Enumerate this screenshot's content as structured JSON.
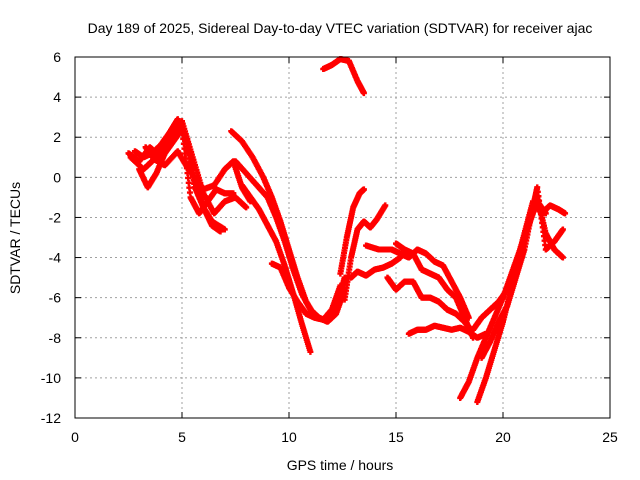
{
  "chart_data": {
    "type": "scatter",
    "title": "Day 189 of 2025, Sidereal Day-to-day VTEC variation (SDTVAR) for receiver ajac",
    "xlabel": "GPS time / hours",
    "ylabel": "SDTVAR / TECUs",
    "xlim": [
      0,
      25
    ],
    "ylim": [
      -12,
      6
    ],
    "x_ticks": [
      0,
      5,
      10,
      15,
      20,
      25
    ],
    "y_ticks": [
      6,
      4,
      2,
      0,
      -2,
      -4,
      -6,
      -8,
      -10,
      -12
    ],
    "grid": true,
    "legend": "none",
    "marker_color": "#ff0000",
    "series": [
      {
        "x": [
          2.5,
          3.0,
          3.5,
          4.0,
          4.5,
          5.0,
          5.5,
          6.0,
          6.5,
          7.0,
          7.5,
          8.0
        ],
        "y": [
          1.2,
          0.8,
          1.5,
          1.0,
          2.0,
          2.8,
          1.0,
          -0.8,
          -1.8,
          -1.2,
          -1.0,
          -1.5
        ]
      },
      {
        "x": [
          2.6,
          3.2,
          3.6,
          4.2,
          4.8,
          5.2,
          5.6,
          6.0,
          6.4,
          7.0
        ],
        "y": [
          1.0,
          0.4,
          0.8,
          1.5,
          2.6,
          2.0,
          -0.5,
          -1.5,
          -2.2,
          -2.6
        ]
      },
      {
        "x": [
          2.8,
          3.2,
          3.6,
          4.0,
          4.4,
          4.8,
          5.2,
          5.6,
          6.0,
          6.4,
          6.8
        ],
        "y": [
          1.3,
          1.0,
          1.2,
          1.6,
          2.2,
          2.9,
          1.8,
          -0.2,
          -1.5,
          -2.4,
          -2.7
        ]
      },
      {
        "x": [
          3.0,
          3.4,
          3.8,
          4.2,
          4.6,
          5.0,
          5.4,
          5.8,
          6.2,
          6.6,
          7.0,
          7.4
        ],
        "y": [
          0.4,
          -0.5,
          0.2,
          1.2,
          1.8,
          2.4,
          -1.0,
          -1.8,
          -1.2,
          -0.6,
          -0.8,
          -0.8
        ]
      },
      {
        "x": [
          3.3,
          3.7,
          4.2,
          4.8,
          5.3,
          6.0,
          6.5,
          7.0,
          7.4,
          7.8,
          8.2
        ],
        "y": [
          1.5,
          0.9,
          0.6,
          1.3,
          0.4,
          -0.6,
          -0.4,
          0.4,
          0.8,
          -0.5,
          -1.2
        ]
      },
      {
        "x": [
          7.3,
          7.8,
          8.3,
          8.8,
          9.2,
          9.6,
          10.0,
          10.4,
          10.8,
          11.2,
          11.6,
          12.0,
          12.3,
          12.6
        ],
        "y": [
          2.3,
          1.8,
          1.0,
          0.0,
          -1.0,
          -2.2,
          -3.6,
          -5.0,
          -6.2,
          -6.9,
          -7.1,
          -6.9,
          -6.2,
          -5.0
        ]
      },
      {
        "x": [
          7.5,
          8.0,
          8.5,
          9.0,
          9.4,
          9.8,
          10.2,
          10.6,
          11.0,
          11.4,
          11.8,
          12.2,
          12.6
        ],
        "y": [
          0.8,
          0.2,
          -0.4,
          -1.0,
          -2.0,
          -3.2,
          -4.6,
          -5.8,
          -6.6,
          -7.0,
          -7.2,
          -6.8,
          -5.6
        ]
      },
      {
        "x": [
          7.8,
          8.2,
          8.6,
          9.0,
          9.4,
          9.8,
          10.2,
          10.6,
          11.0
        ],
        "y": [
          -0.4,
          -1.0,
          -1.6,
          -2.4,
          -3.2,
          -4.4,
          -5.8,
          -7.3,
          -8.7
        ]
      },
      {
        "x": [
          9.2,
          9.6,
          10.0,
          10.4,
          10.8,
          11.2,
          11.6,
          12.0,
          12.4
        ],
        "y": [
          -4.3,
          -4.5,
          -5.5,
          -6.2,
          -6.8,
          -7.0,
          -7.1,
          -6.6,
          -5.4
        ]
      },
      {
        "x": [
          12.4,
          12.7,
          13.0,
          13.3,
          13.5
        ],
        "y": [
          -4.8,
          -3.0,
          -1.5,
          -0.8,
          -0.6
        ]
      },
      {
        "x": [
          12.6,
          12.9,
          13.2,
          13.5,
          13.8,
          14.1,
          14.5
        ],
        "y": [
          -6.1,
          -4.0,
          -2.6,
          -2.2,
          -2.5,
          -2.1,
          -1.4
        ]
      },
      {
        "x": [
          12.9,
          13.2,
          13.6,
          14.0,
          14.4,
          14.8,
          15.2
        ],
        "y": [
          -5.0,
          -4.7,
          -4.9,
          -4.6,
          -4.5,
          -4.3,
          -4.0
        ]
      },
      {
        "x": [
          11.6,
          12.0,
          12.4,
          12.8,
          13.2,
          13.5
        ],
        "y": [
          5.4,
          5.6,
          5.9,
          5.8,
          4.8,
          4.2
        ]
      },
      {
        "x": [
          13.6,
          14.2,
          14.8,
          15.2,
          15.6,
          16.0,
          16.4,
          16.8,
          17.2,
          17.6,
          18.0,
          18.4
        ],
        "y": [
          -3.4,
          -3.6,
          -3.6,
          -3.8,
          -4.0,
          -3.6,
          -3.8,
          -4.2,
          -4.4,
          -5.2,
          -6.0,
          -7.0
        ]
      },
      {
        "x": [
          14.6,
          15.0,
          15.4,
          15.8,
          16.2,
          16.6,
          17.0,
          17.4,
          17.8,
          18.2,
          18.5
        ],
        "y": [
          -5.0,
          -5.6,
          -5.2,
          -5.2,
          -6.0,
          -6.0,
          -6.2,
          -6.6,
          -6.8,
          -7.2,
          -7.6
        ]
      },
      {
        "x": [
          15.0,
          15.4,
          15.8,
          16.2,
          16.6,
          17.0,
          17.4,
          17.8,
          18.2,
          18.6
        ],
        "y": [
          -3.3,
          -3.6,
          -3.8,
          -4.6,
          -4.8,
          -5.0,
          -5.6,
          -6.0,
          -7.0,
          -8.0
        ]
      },
      {
        "x": [
          15.6,
          16.0,
          16.4,
          16.8,
          17.2,
          17.6,
          18.0,
          18.4,
          18.8,
          19.2
        ],
        "y": [
          -7.8,
          -7.6,
          -7.6,
          -7.4,
          -7.5,
          -7.6,
          -7.5,
          -7.7,
          -8.0,
          -7.8
        ]
      },
      {
        "x": [
          18.0,
          18.4,
          18.8,
          19.2,
          19.6,
          20.0,
          20.4,
          20.8,
          21.2,
          21.6,
          22.0
        ],
        "y": [
          -11.0,
          -10.2,
          -9.0,
          -8.0,
          -7.0,
          -6.0,
          -4.8,
          -3.6,
          -2.4,
          -1.2,
          -1.8
        ]
      },
      {
        "x": [
          18.8,
          19.2,
          19.6,
          20.0,
          20.4,
          20.8,
          21.2,
          21.6,
          22.0,
          22.4,
          22.8
        ],
        "y": [
          -11.2,
          -10.0,
          -8.6,
          -7.2,
          -5.5,
          -3.8,
          -2.2,
          -1.0,
          -2.8,
          -3.6,
          -4.0
        ]
      },
      {
        "x": [
          18.6,
          19.0,
          19.4,
          19.8,
          20.2,
          20.6,
          21.0,
          21.4,
          21.8,
          22.2,
          22.6,
          22.9
        ],
        "y": [
          -7.6,
          -7.0,
          -6.6,
          -6.2,
          -5.6,
          -4.4,
          -2.8,
          -1.2,
          -1.8,
          -1.4,
          -1.6,
          -1.8
        ]
      },
      {
        "x": [
          19.0,
          19.4,
          19.8,
          20.2,
          20.6,
          21.0,
          21.4,
          21.6,
          22.0,
          22.4,
          22.8
        ],
        "y": [
          -9.0,
          -8.2,
          -7.2,
          -6.4,
          -5.0,
          -3.6,
          -1.5,
          -0.5,
          -3.6,
          -3.2,
          -2.6
        ]
      }
    ]
  }
}
